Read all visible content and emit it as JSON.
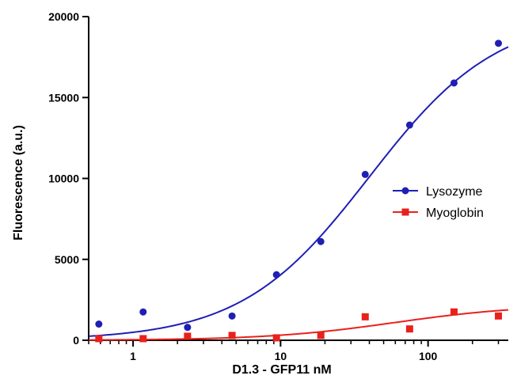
{
  "chart_data": {
    "type": "scatter",
    "title": "",
    "xlabel": "D1.3 - GFP11 nM",
    "ylabel": "Fluorescence (a.u.)",
    "xscale": "log",
    "xlim": [
      0.5,
      350
    ],
    "ylim": [
      0,
      20000
    ],
    "xticks": [
      {
        "value": 1,
        "label": "1"
      },
      {
        "value": 10,
        "label": "10"
      },
      {
        "value": 100,
        "label": "100"
      }
    ],
    "yticks": [
      {
        "value": 0,
        "label": "0"
      },
      {
        "value": 5000,
        "label": "5000"
      },
      {
        "value": 10000,
        "label": "10000"
      },
      {
        "value": 15000,
        "label": "15000"
      },
      {
        "value": 20000,
        "label": "20000"
      }
    ],
    "grid": false,
    "legend_position": "right",
    "series": [
      {
        "name": "Lysozyme",
        "color": "#1f1fb4",
        "marker": "circle",
        "x": [
          0.586,
          1.17,
          2.34,
          4.69,
          9.38,
          18.75,
          37.5,
          75,
          150,
          300
        ],
        "y": [
          1000,
          1750,
          800,
          1500,
          4050,
          6100,
          10250,
          13300,
          15900,
          18350
        ],
        "fit": {
          "bottom": 0,
          "top": 20200,
          "ec50": 40,
          "hill": 1.0
        }
      },
      {
        "name": "Myoglobin",
        "color": "#e8211d",
        "marker": "square",
        "x": [
          0.586,
          1.17,
          2.34,
          4.69,
          9.38,
          18.75,
          37.5,
          75,
          150,
          300
        ],
        "y": [
          100,
          100,
          250,
          300,
          150,
          300,
          1450,
          700,
          1750,
          1500
        ],
        "fit": {
          "bottom": 0,
          "top": 2200,
          "ec50": 60,
          "hill": 1.0
        }
      }
    ]
  }
}
